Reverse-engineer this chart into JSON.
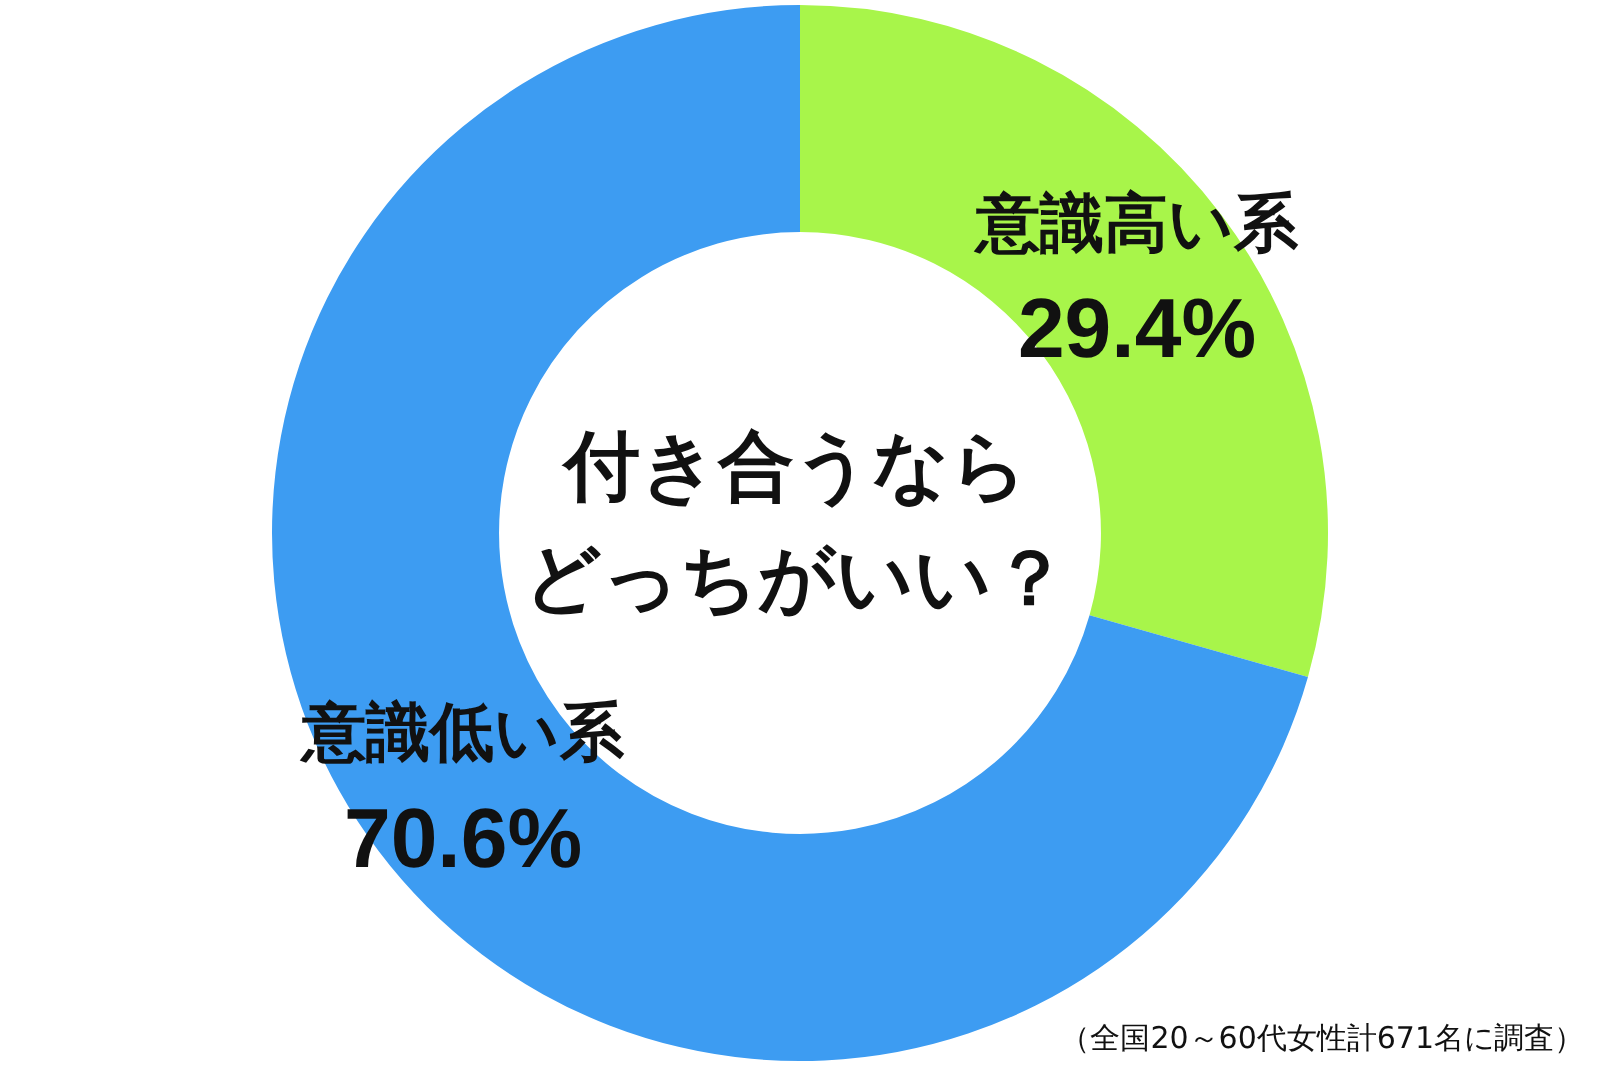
{
  "chart_data": {
    "type": "donut",
    "title": "付き合うならどっちがいい？",
    "categories": [
      "意識高い系",
      "意識低い系"
    ],
    "values": [
      29.4,
      70.6
    ],
    "value_labels": [
      "29.4%",
      "70.6%"
    ],
    "colors": [
      "#a8f54a",
      "#3d9cf2"
    ],
    "legend": false,
    "annotations": [
      "（全国20～60代女性計671名に調査）"
    ]
  }
}
